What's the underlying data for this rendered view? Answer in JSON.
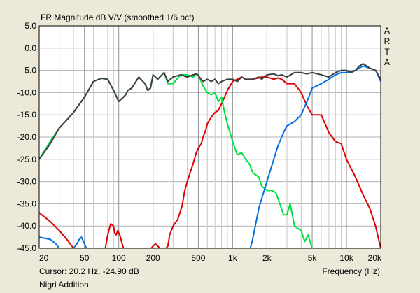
{
  "chart_data": {
    "type": "line",
    "title": "FR Magnitude dB V/V (smoothed 1/6 oct)",
    "xlabel": "Frequency (Hz)",
    "ylabel": "",
    "watermark": [
      "A",
      "R",
      "T",
      "A"
    ],
    "xscale": "log",
    "xlim": [
      20,
      20000
    ],
    "ylim": [
      -45,
      5
    ],
    "grid": true,
    "y_ticks": [
      5,
      0,
      -5,
      -10,
      -15,
      -20,
      -25,
      -30,
      -35,
      -40,
      -45
    ],
    "y_tick_labels": [
      "5.0",
      "0.0",
      "-5.0",
      "-10.0",
      "-15.0",
      "-20.0",
      "-25.0",
      "-30.0",
      "-35.0",
      "-40.0",
      "-45.0"
    ],
    "x_tick_values": [
      20,
      50,
      100,
      200,
      500,
      1000,
      2000,
      5000,
      10000,
      20000
    ],
    "x_tick_labels": [
      "20",
      "50",
      "100",
      "200",
      "500",
      "1k",
      "2k",
      "5k",
      "10k",
      "20k"
    ],
    "series": [
      {
        "color": "#e00000",
        "x": [
          20,
          25,
          30,
          35,
          40,
          45,
          55,
          70,
          75,
          80,
          85,
          90,
          92,
          95,
          98,
          102,
          110,
          115,
          120,
          180,
          200,
          210,
          230,
          250,
          270,
          280,
          300,
          330,
          360,
          380,
          400,
          430,
          450,
          480,
          500,
          530,
          550,
          580,
          600,
          650,
          700,
          750,
          800,
          850,
          900,
          1000,
          1100,
          1200,
          1300,
          1500,
          1700,
          1800,
          2000,
          2300,
          2500,
          2700,
          3000,
          3500,
          4000,
          4500,
          5000,
          6000,
          7000,
          8000,
          9000,
          10000,
          12000,
          14000,
          16000,
          18000,
          20000
        ],
        "y": [
          -37.0,
          -39.0,
          -41.0,
          -43.0,
          -45.0,
          -47.0,
          -52.0,
          -50.0,
          -46.0,
          -42.0,
          -39.5,
          -40.0,
          -41.5,
          -42.0,
          -41.0,
          -42.0,
          -45.0,
          -45.5,
          -46.0,
          -46.0,
          -44.5,
          -44.0,
          -45.0,
          -45.5,
          -44.5,
          -42.0,
          -40.0,
          -38.5,
          -35.5,
          -32.0,
          -30.0,
          -27.5,
          -26.0,
          -23.5,
          -22.5,
          -21.5,
          -20.0,
          -18.5,
          -17.0,
          -15.5,
          -14.5,
          -14.0,
          -12.5,
          -11.0,
          -9.5,
          -7.5,
          -7.0,
          -6.5,
          -7.0,
          -7.0,
          -6.7,
          -6.5,
          -6.5,
          -7.0,
          -6.7,
          -7.0,
          -8.0,
          -8.0,
          -10.0,
          -13.0,
          -15.0,
          -15.0,
          -19.0,
          -21.0,
          -21.5,
          -25.0,
          -29.0,
          -33.0,
          -36.0,
          -40.0,
          -45.0
        ]
      },
      {
        "color": "#00e040",
        "x": [
          20,
          25,
          30,
          40,
          50,
          60,
          70,
          80,
          90,
          100,
          110,
          115,
          120,
          130,
          150,
          170,
          180,
          190,
          200,
          220,
          250,
          270,
          300,
          350,
          400,
          450,
          480,
          500,
          550,
          600,
          650,
          700,
          750,
          800,
          850,
          900,
          1000,
          1100,
          1200,
          1300,
          1400,
          1500,
          1700,
          1800,
          2000,
          2200,
          2400,
          2600,
          2800,
          3000,
          3200,
          3500,
          3700,
          4000,
          4300,
          4600,
          5000
        ],
        "y": [
          -25.0,
          -21.0,
          -18.0,
          -14.5,
          -11.0,
          -7.5,
          -6.8,
          -7.0,
          -9.5,
          -12.0,
          -11.0,
          -10.5,
          -9.5,
          -9.0,
          -6.5,
          -8.0,
          -9.5,
          -9.0,
          -6.0,
          -7.0,
          -5.5,
          -8.0,
          -8.0,
          -6.0,
          -6.0,
          -6.5,
          -5.8,
          -6.0,
          -8.5,
          -10.0,
          -10.5,
          -10.0,
          -12.0,
          -11.0,
          -14.5,
          -17.0,
          -21.0,
          -24.0,
          -23.5,
          -25.0,
          -26.0,
          -28.0,
          -29.0,
          -31.0,
          -32.0,
          -32.0,
          -32.5,
          -35.0,
          -37.5,
          -37.5,
          -35.0,
          -40.0,
          -40.5,
          -41.0,
          -43.5,
          -42.0,
          -45.0
        ]
      },
      {
        "color": "#0070e0",
        "x": [
          20,
          25,
          28,
          30,
          40,
          43,
          45,
          47,
          49,
          52,
          55,
          1400,
          1500,
          1700,
          2000,
          2300,
          2500,
          2800,
          3000,
          3500,
          4000,
          4500,
          5000,
          6000,
          7000,
          8000,
          9000,
          10000,
          12000,
          14000,
          16000,
          18000,
          20000
        ],
        "y": [
          -42.5,
          -43.0,
          -44.0,
          -45.0,
          -45.0,
          -44.0,
          -43.0,
          -42.5,
          -43.5,
          -45.0,
          -46.0,
          -46.0,
          -43.0,
          -36.0,
          -30.0,
          -25.0,
          -22.0,
          -19.0,
          -17.5,
          -16.5,
          -15.0,
          -12.0,
          -9.0,
          -8.0,
          -7.0,
          -6.0,
          -5.5,
          -5.5,
          -5.0,
          -4.0,
          -4.5,
          -5.0,
          -7.5
        ]
      },
      {
        "color": "#404040",
        "x": [
          20,
          25,
          30,
          40,
          50,
          60,
          70,
          80,
          90,
          100,
          110,
          115,
          120,
          130,
          150,
          170,
          180,
          190,
          200,
          220,
          250,
          270,
          300,
          350,
          400,
          450,
          480,
          500,
          550,
          600,
          650,
          700,
          750,
          800,
          900,
          1000,
          1100,
          1200,
          1300,
          1500,
          1700,
          1800,
          2000,
          2300,
          2500,
          2700,
          3000,
          3500,
          4000,
          4500,
          5000,
          6000,
          7000,
          8000,
          9000,
          10000,
          11000,
          12000,
          13000,
          14000,
          15000,
          16000,
          18000,
          20000
        ],
        "y": [
          -25.0,
          -21.5,
          -18.0,
          -14.5,
          -11.0,
          -7.5,
          -6.8,
          -7.0,
          -9.5,
          -12.0,
          -11.0,
          -10.5,
          -9.5,
          -9.0,
          -6.5,
          -8.0,
          -9.5,
          -9.0,
          -6.0,
          -7.0,
          -5.5,
          -7.5,
          -6.5,
          -6.0,
          -6.5,
          -6.0,
          -5.8,
          -6.2,
          -7.5,
          -7.0,
          -7.5,
          -7.0,
          -8.0,
          -7.5,
          -7.0,
          -7.0,
          -7.5,
          -6.5,
          -7.0,
          -7.0,
          -6.5,
          -7.0,
          -6.0,
          -5.8,
          -6.2,
          -6.0,
          -6.5,
          -5.5,
          -5.5,
          -5.8,
          -5.5,
          -6.0,
          -6.5,
          -5.5,
          -5.0,
          -5.0,
          -5.5,
          -5.0,
          -4.0,
          -3.5,
          -4.0,
          -4.5,
          -5.0,
          -7.0
        ]
      }
    ]
  },
  "footer": {
    "cursor": "Cursor: 20.2 Hz, -24.90 dB",
    "note": "Nigri Addition"
  }
}
